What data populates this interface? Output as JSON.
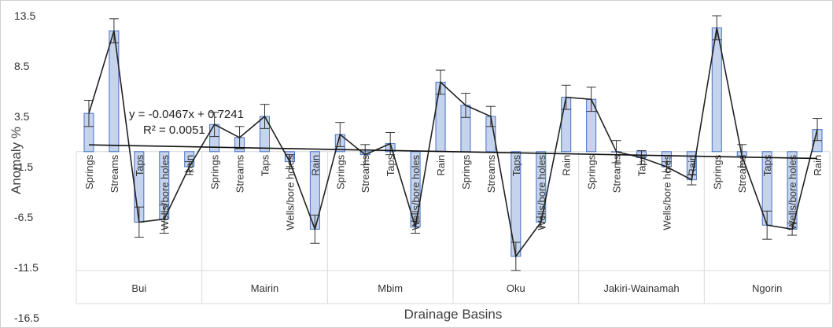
{
  "chart_data": {
    "type": "bar",
    "title": "",
    "xlabel": "Drainage Basins",
    "ylabel": "Anomaly %",
    "ylim": [
      -16.5,
      13.5
    ],
    "yticks": [
      13.5,
      8.5,
      3.5,
      -1.5,
      -6.5,
      -11.5,
      -16.5
    ],
    "grid": false,
    "bar_color": "#c5d3ec",
    "bar_edge_color": "#4472c4",
    "line_color": "#222222",
    "groups": [
      {
        "name": "Bui",
        "categories": [
          "Springs",
          "Streams",
          "Taps",
          "Wells/bore holes",
          "Rain"
        ],
        "values": [
          3.8,
          12.0,
          -7.0,
          -6.7,
          -1.5
        ],
        "errors": [
          1.3,
          1.2,
          1.5,
          1.4,
          0.5
        ]
      },
      {
        "name": "Mairin",
        "categories": [
          "Springs",
          "Streams",
          "Taps",
          "Wells/bore holes",
          "Rain"
        ],
        "values": [
          2.7,
          1.4,
          3.5,
          -1.0,
          -7.7
        ],
        "errors": [
          1.2,
          1.1,
          1.2,
          0.7,
          1.4
        ]
      },
      {
        "name": "Mbim",
        "categories": [
          "Springs",
          "Streams",
          "Taps",
          "Wells/bore holes",
          "Rain"
        ],
        "values": [
          1.7,
          -0.3,
          0.8,
          -7.5,
          6.9
        ],
        "errors": [
          1.2,
          1.0,
          1.1,
          0.6,
          1.2
        ]
      },
      {
        "name": "Oku",
        "categories": [
          "Springs",
          "Streams",
          "Taps",
          "Wells/bore holes",
          "Rain"
        ],
        "values": [
          4.6,
          3.5,
          -10.4,
          -7.0,
          5.4
        ],
        "errors": [
          1.2,
          1.0,
          1.4,
          0.5,
          1.2
        ]
      },
      {
        "name": "Jakiri-Wainamah",
        "categories": [
          "Springs",
          "Streams",
          "Taps",
          "Wells/bore holes",
          "Rain"
        ],
        "values": [
          5.2,
          0.0,
          -0.6,
          -1.5,
          -2.8
        ],
        "errors": [
          1.2,
          1.1,
          0.7,
          0.5,
          0.5
        ]
      },
      {
        "name": "Ngorin",
        "categories": [
          "Springs",
          "Streams",
          "Taps",
          "Wells/bore holes",
          "Rain"
        ],
        "values": [
          12.3,
          -0.4,
          -7.3,
          -7.7,
          2.2
        ],
        "errors": [
          1.2,
          1.1,
          1.4,
          0.6,
          1.1
        ]
      }
    ],
    "trend_line": {
      "equation": "y = -0.0467x + 0.7241",
      "r_squared": "R² = 0.0051",
      "slope": -0.0467,
      "intercept": 0.7241
    }
  }
}
